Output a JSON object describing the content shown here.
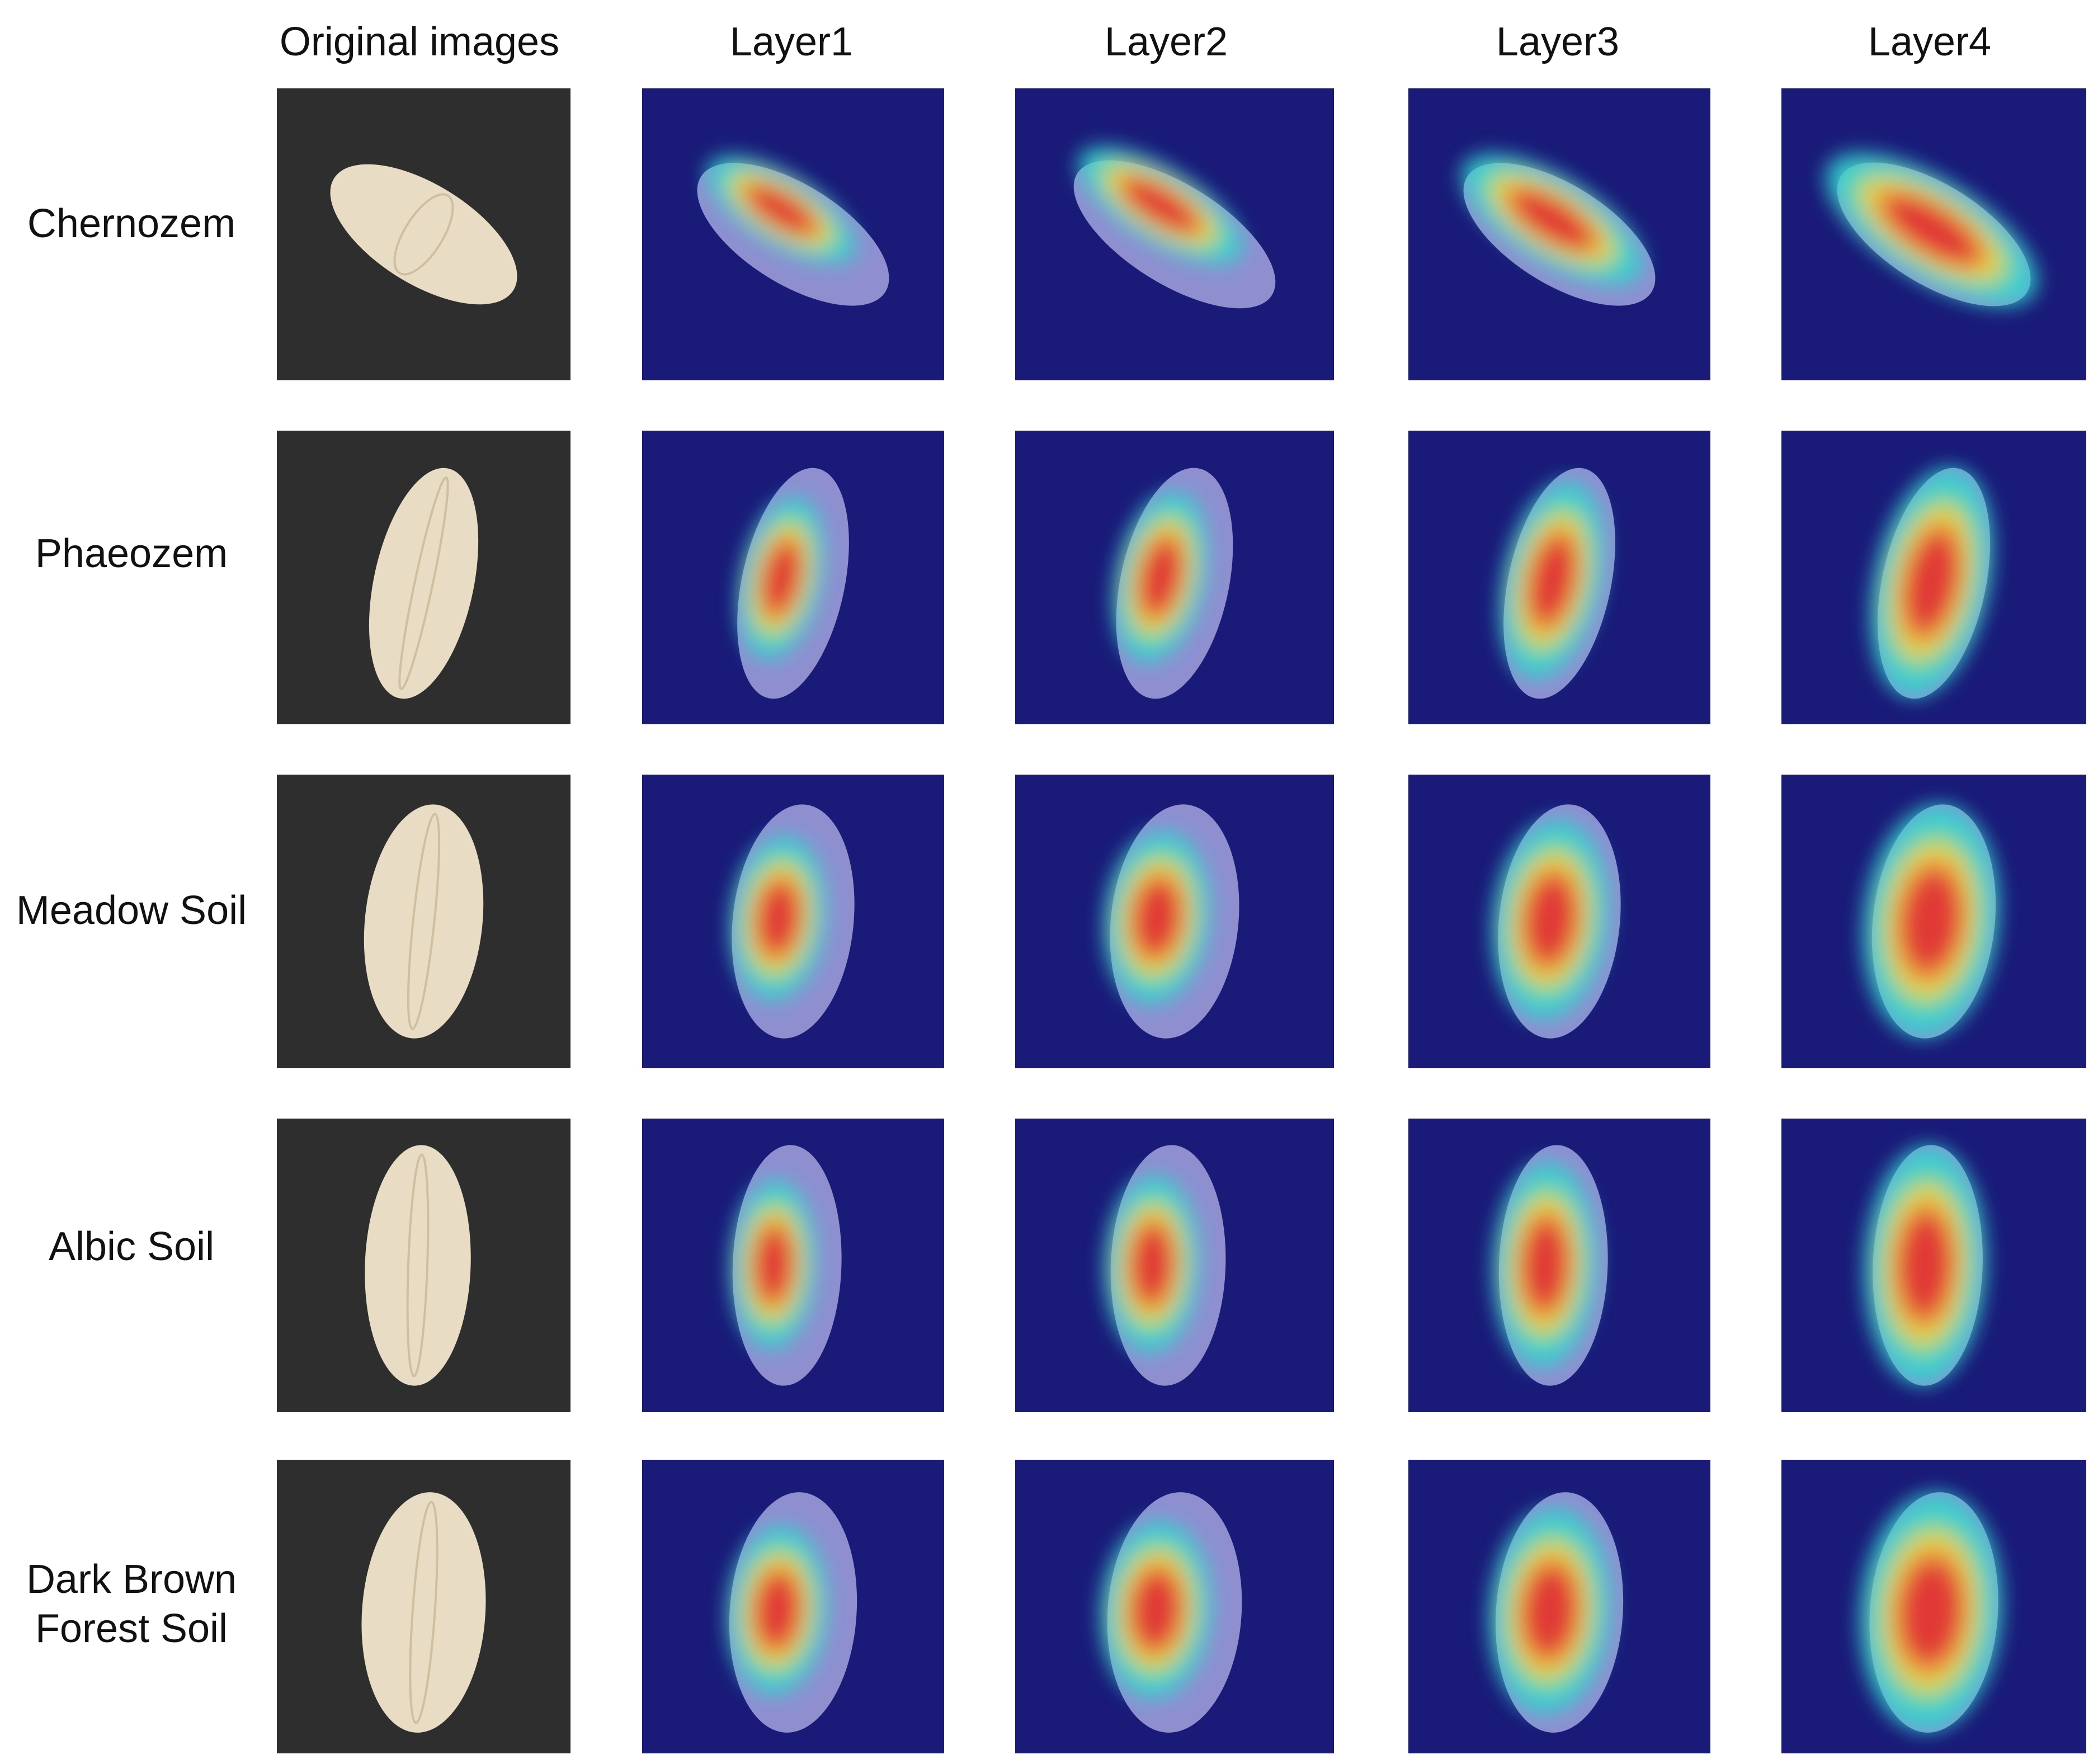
{
  "figure": {
    "column_headers": [
      "Original images",
      "Layer1",
      "Layer2",
      "Layer3",
      "Layer4"
    ],
    "rows": [
      {
        "label": "Chernozem"
      },
      {
        "label": "Phaeozem"
      },
      {
        "label": "Meadow Soil"
      },
      {
        "label": "Albic Soil"
      },
      {
        "label": "Dark Brown Forest Soil",
        "label_lines": [
          "Dark Brown",
          "Forest Soil"
        ]
      }
    ],
    "colors": {
      "original_background": "#2e2e2e",
      "heatmap_background": "#1a1a78",
      "grain": "#e8dcc4",
      "heat_low": "#2fd3d0",
      "heat_mid": "#f5e23a",
      "heat_high": "#e8332a",
      "overlay_grain": "#8f8fd0"
    }
  }
}
